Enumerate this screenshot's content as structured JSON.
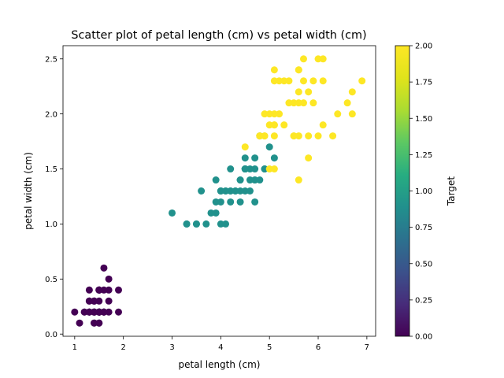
{
  "chart_data": {
    "type": "scatter",
    "title": "Scatter plot of petal length (cm) vs petal width (cm)",
    "xlabel": "petal length (cm)",
    "ylabel": "petal width (cm)",
    "xlim": [
      0.76,
      7.18
    ],
    "ylim": [
      -0.02,
      2.62
    ],
    "xticks": [
      "1",
      "2",
      "3",
      "4",
      "5",
      "6",
      "7"
    ],
    "yticks": [
      "0.0",
      "0.5",
      "1.0",
      "1.5",
      "2.0",
      "2.5"
    ],
    "grid": false,
    "colorbar": {
      "label": "Target",
      "range": [
        0,
        2
      ],
      "ticks": [
        "0.00",
        "0.25",
        "0.50",
        "0.75",
        "1.00",
        "1.25",
        "1.50",
        "1.75",
        "2.00"
      ],
      "colormap": "viridis"
    },
    "colors": {
      "0": "#440154",
      "1": "#21918c",
      "2": "#fde725"
    },
    "points": [
      [
        1.4,
        0.2,
        0
      ],
      [
        1.4,
        0.2,
        0
      ],
      [
        1.3,
        0.2,
        0
      ],
      [
        1.5,
        0.2,
        0
      ],
      [
        1.4,
        0.2,
        0
      ],
      [
        1.7,
        0.4,
        0
      ],
      [
        1.4,
        0.3,
        0
      ],
      [
        1.5,
        0.2,
        0
      ],
      [
        1.4,
        0.2,
        0
      ],
      [
        1.5,
        0.1,
        0
      ],
      [
        1.5,
        0.2,
        0
      ],
      [
        1.6,
        0.2,
        0
      ],
      [
        1.4,
        0.1,
        0
      ],
      [
        1.1,
        0.1,
        0
      ],
      [
        1.2,
        0.2,
        0
      ],
      [
        1.5,
        0.4,
        0
      ],
      [
        1.3,
        0.4,
        0
      ],
      [
        1.4,
        0.3,
        0
      ],
      [
        1.7,
        0.3,
        0
      ],
      [
        1.5,
        0.3,
        0
      ],
      [
        1.7,
        0.2,
        0
      ],
      [
        1.5,
        0.4,
        0
      ],
      [
        1.0,
        0.2,
        0
      ],
      [
        1.7,
        0.5,
        0
      ],
      [
        1.9,
        0.2,
        0
      ],
      [
        1.6,
        0.2,
        0
      ],
      [
        1.6,
        0.4,
        0
      ],
      [
        1.5,
        0.2,
        0
      ],
      [
        1.4,
        0.2,
        0
      ],
      [
        1.6,
        0.2,
        0
      ],
      [
        1.6,
        0.2,
        0
      ],
      [
        1.5,
        0.4,
        0
      ],
      [
        1.5,
        0.1,
        0
      ],
      [
        1.4,
        0.2,
        0
      ],
      [
        1.5,
        0.2,
        0
      ],
      [
        1.2,
        0.2,
        0
      ],
      [
        1.3,
        0.2,
        0
      ],
      [
        1.4,
        0.1,
        0
      ],
      [
        1.3,
        0.2,
        0
      ],
      [
        1.5,
        0.2,
        0
      ],
      [
        1.3,
        0.3,
        0
      ],
      [
        1.3,
        0.3,
        0
      ],
      [
        1.3,
        0.2,
        0
      ],
      [
        1.6,
        0.6,
        0
      ],
      [
        1.9,
        0.4,
        0
      ],
      [
        1.4,
        0.3,
        0
      ],
      [
        1.6,
        0.2,
        0
      ],
      [
        1.4,
        0.2,
        0
      ],
      [
        1.5,
        0.2,
        0
      ],
      [
        1.4,
        0.2,
        0
      ],
      [
        4.7,
        1.4,
        1
      ],
      [
        4.5,
        1.5,
        1
      ],
      [
        4.9,
        1.5,
        1
      ],
      [
        4.0,
        1.3,
        1
      ],
      [
        4.6,
        1.5,
        1
      ],
      [
        4.5,
        1.3,
        1
      ],
      [
        4.7,
        1.6,
        1
      ],
      [
        3.3,
        1.0,
        1
      ],
      [
        4.6,
        1.3,
        1
      ],
      [
        3.9,
        1.4,
        1
      ],
      [
        3.5,
        1.0,
        1
      ],
      [
        4.2,
        1.5,
        1
      ],
      [
        4.0,
        1.0,
        1
      ],
      [
        4.7,
        1.4,
        1
      ],
      [
        3.6,
        1.3,
        1
      ],
      [
        4.4,
        1.4,
        1
      ],
      [
        4.5,
        1.5,
        1
      ],
      [
        4.1,
        1.0,
        1
      ],
      [
        4.5,
        1.5,
        1
      ],
      [
        3.9,
        1.1,
        1
      ],
      [
        4.8,
        1.8,
        1
      ],
      [
        4.0,
        1.3,
        1
      ],
      [
        4.9,
        1.5,
        1
      ],
      [
        4.7,
        1.2,
        1
      ],
      [
        4.3,
        1.3,
        1
      ],
      [
        4.4,
        1.4,
        1
      ],
      [
        4.8,
        1.4,
        1
      ],
      [
        5.0,
        1.7,
        1
      ],
      [
        4.5,
        1.5,
        1
      ],
      [
        3.5,
        1.0,
        1
      ],
      [
        3.8,
        1.1,
        1
      ],
      [
        3.7,
        1.0,
        1
      ],
      [
        3.9,
        1.2,
        1
      ],
      [
        5.1,
        1.6,
        1
      ],
      [
        4.5,
        1.5,
        1
      ],
      [
        4.5,
        1.6,
        1
      ],
      [
        4.7,
        1.5,
        1
      ],
      [
        4.4,
        1.3,
        1
      ],
      [
        4.1,
        1.3,
        1
      ],
      [
        4.0,
        1.3,
        1
      ],
      [
        4.4,
        1.2,
        1
      ],
      [
        4.6,
        1.4,
        1
      ],
      [
        4.0,
        1.2,
        1
      ],
      [
        3.3,
        1.0,
        1
      ],
      [
        4.2,
        1.3,
        1
      ],
      [
        4.2,
        1.2,
        1
      ],
      [
        4.2,
        1.3,
        1
      ],
      [
        4.3,
        1.3,
        1
      ],
      [
        3.0,
        1.1,
        1
      ],
      [
        4.1,
        1.3,
        1
      ],
      [
        6.0,
        2.5,
        2
      ],
      [
        5.1,
        1.9,
        2
      ],
      [
        5.9,
        2.1,
        2
      ],
      [
        5.6,
        1.8,
        2
      ],
      [
        5.8,
        2.2,
        2
      ],
      [
        6.6,
        2.1,
        2
      ],
      [
        4.5,
        1.7,
        2
      ],
      [
        6.3,
        1.8,
        2
      ],
      [
        5.8,
        1.8,
        2
      ],
      [
        6.1,
        2.5,
        2
      ],
      [
        5.1,
        2.0,
        2
      ],
      [
        5.3,
        1.9,
        2
      ],
      [
        5.5,
        2.1,
        2
      ],
      [
        5.0,
        2.0,
        2
      ],
      [
        5.1,
        2.4,
        2
      ],
      [
        5.3,
        2.3,
        2
      ],
      [
        5.5,
        1.8,
        2
      ],
      [
        6.7,
        2.2,
        2
      ],
      [
        6.9,
        2.3,
        2
      ],
      [
        5.0,
        1.5,
        2
      ],
      [
        5.7,
        2.3,
        2
      ],
      [
        4.9,
        2.0,
        2
      ],
      [
        6.7,
        2.0,
        2
      ],
      [
        4.9,
        1.8,
        2
      ],
      [
        5.7,
        2.1,
        2
      ],
      [
        6.0,
        1.8,
        2
      ],
      [
        4.8,
        1.8,
        2
      ],
      [
        4.9,
        1.8,
        2
      ],
      [
        5.6,
        2.1,
        2
      ],
      [
        5.8,
        1.6,
        2
      ],
      [
        6.1,
        1.9,
        2
      ],
      [
        6.4,
        2.0,
        2
      ],
      [
        5.6,
        2.2,
        2
      ],
      [
        5.1,
        1.5,
        2
      ],
      [
        5.6,
        1.4,
        2
      ],
      [
        6.1,
        2.3,
        2
      ],
      [
        5.6,
        2.4,
        2
      ],
      [
        5.5,
        1.8,
        2
      ],
      [
        4.8,
        1.8,
        2
      ],
      [
        5.4,
        2.1,
        2
      ],
      [
        5.6,
        2.4,
        2
      ],
      [
        5.1,
        2.3,
        2
      ],
      [
        5.1,
        1.9,
        2
      ],
      [
        5.9,
        2.3,
        2
      ],
      [
        5.7,
        2.5,
        2
      ],
      [
        5.2,
        2.3,
        2
      ],
      [
        5.0,
        1.9,
        2
      ],
      [
        5.2,
        2.0,
        2
      ],
      [
        5.4,
        2.3,
        2
      ],
      [
        5.1,
        1.8,
        2
      ]
    ]
  }
}
